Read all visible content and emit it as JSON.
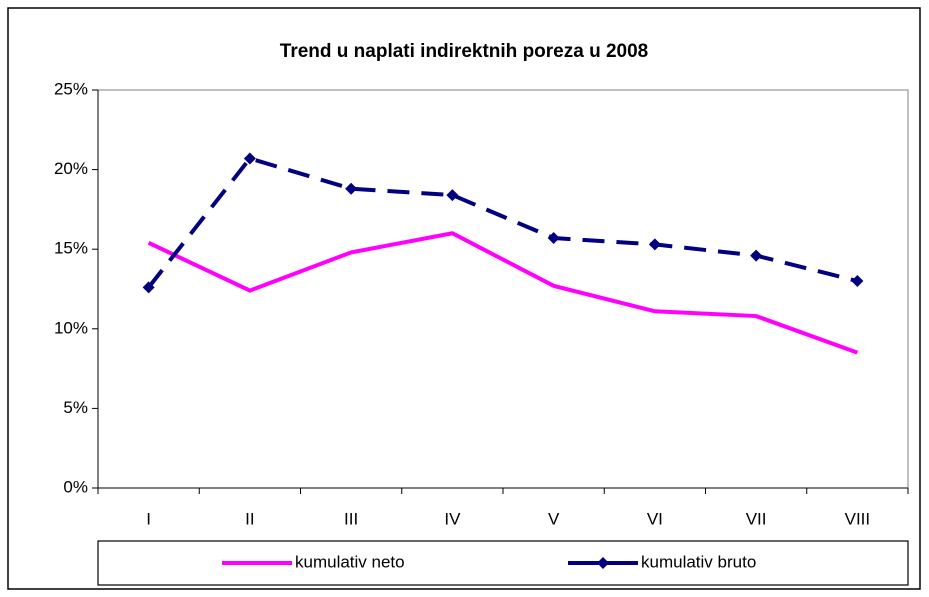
{
  "chart_data": {
    "type": "line",
    "title": "Trend u naplati indirektnih poreza u 2008",
    "categories": [
      "I",
      "II",
      "III",
      "IV",
      "V",
      "VI",
      "VII",
      "VIII"
    ],
    "series": [
      {
        "name": "kumulativ neto",
        "color": "#ff00ff",
        "values": [
          15.4,
          12.4,
          14.8,
          16.0,
          12.7,
          11.1,
          10.8,
          8.5
        ]
      },
      {
        "name": "kumulativ bruto",
        "color": "#000080",
        "values": [
          12.6,
          20.7,
          18.8,
          18.4,
          15.7,
          15.3,
          14.6,
          13.0
        ]
      }
    ],
    "ylim": [
      0,
      25
    ],
    "yticks": [
      {
        "value": 0,
        "label": "0%"
      },
      {
        "value": 5,
        "label": "5%"
      },
      {
        "value": 10,
        "label": "10%"
      },
      {
        "value": 15,
        "label": "15%"
      },
      {
        "value": 20,
        "label": "20%"
      },
      {
        "value": 25,
        "label": "25%"
      }
    ],
    "legend": "bottom"
  }
}
